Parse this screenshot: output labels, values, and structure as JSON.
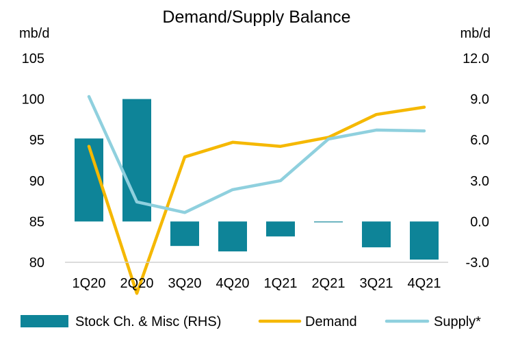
{
  "chart_data": {
    "type": "bar+line",
    "title": "Demand/Supply Balance",
    "y_left_unit": "mb/d",
    "y_right_unit": "mb/d",
    "categories": [
      "1Q20",
      "2Q20",
      "3Q20",
      "4Q20",
      "1Q21",
      "2Q21",
      "3Q21",
      "4Q21"
    ],
    "y_left": {
      "min": 80,
      "max": 105,
      "ticks": [
        "80",
        "85",
        "90",
        "95",
        "100",
        "105"
      ]
    },
    "y_right": {
      "min": -3.0,
      "max": 12.0,
      "ticks": [
        "-3.0",
        "0.0",
        "3.0",
        "6.0",
        "9.0",
        "12.0"
      ]
    },
    "series": [
      {
        "name": "Stock Ch. & Misc (RHS)",
        "type": "bar",
        "axis": "right",
        "color": "#0e8498",
        "values": [
          6.1,
          9.0,
          -1.8,
          -2.2,
          -1.1,
          0.0,
          -1.9,
          -2.8
        ]
      },
      {
        "name": "Demand",
        "type": "line",
        "axis": "left",
        "color": "#f5b800",
        "values": [
          94.2,
          76.2,
          92.9,
          94.7,
          94.2,
          95.3,
          98.1,
          99.0
        ]
      },
      {
        "name": "Supply*",
        "type": "line",
        "axis": "left",
        "color": "#8fd0de",
        "values": [
          100.3,
          87.4,
          86.1,
          88.9,
          90.0,
          95.1,
          96.2,
          96.1
        ]
      }
    ],
    "grid": false,
    "legend_position": "bottom"
  }
}
